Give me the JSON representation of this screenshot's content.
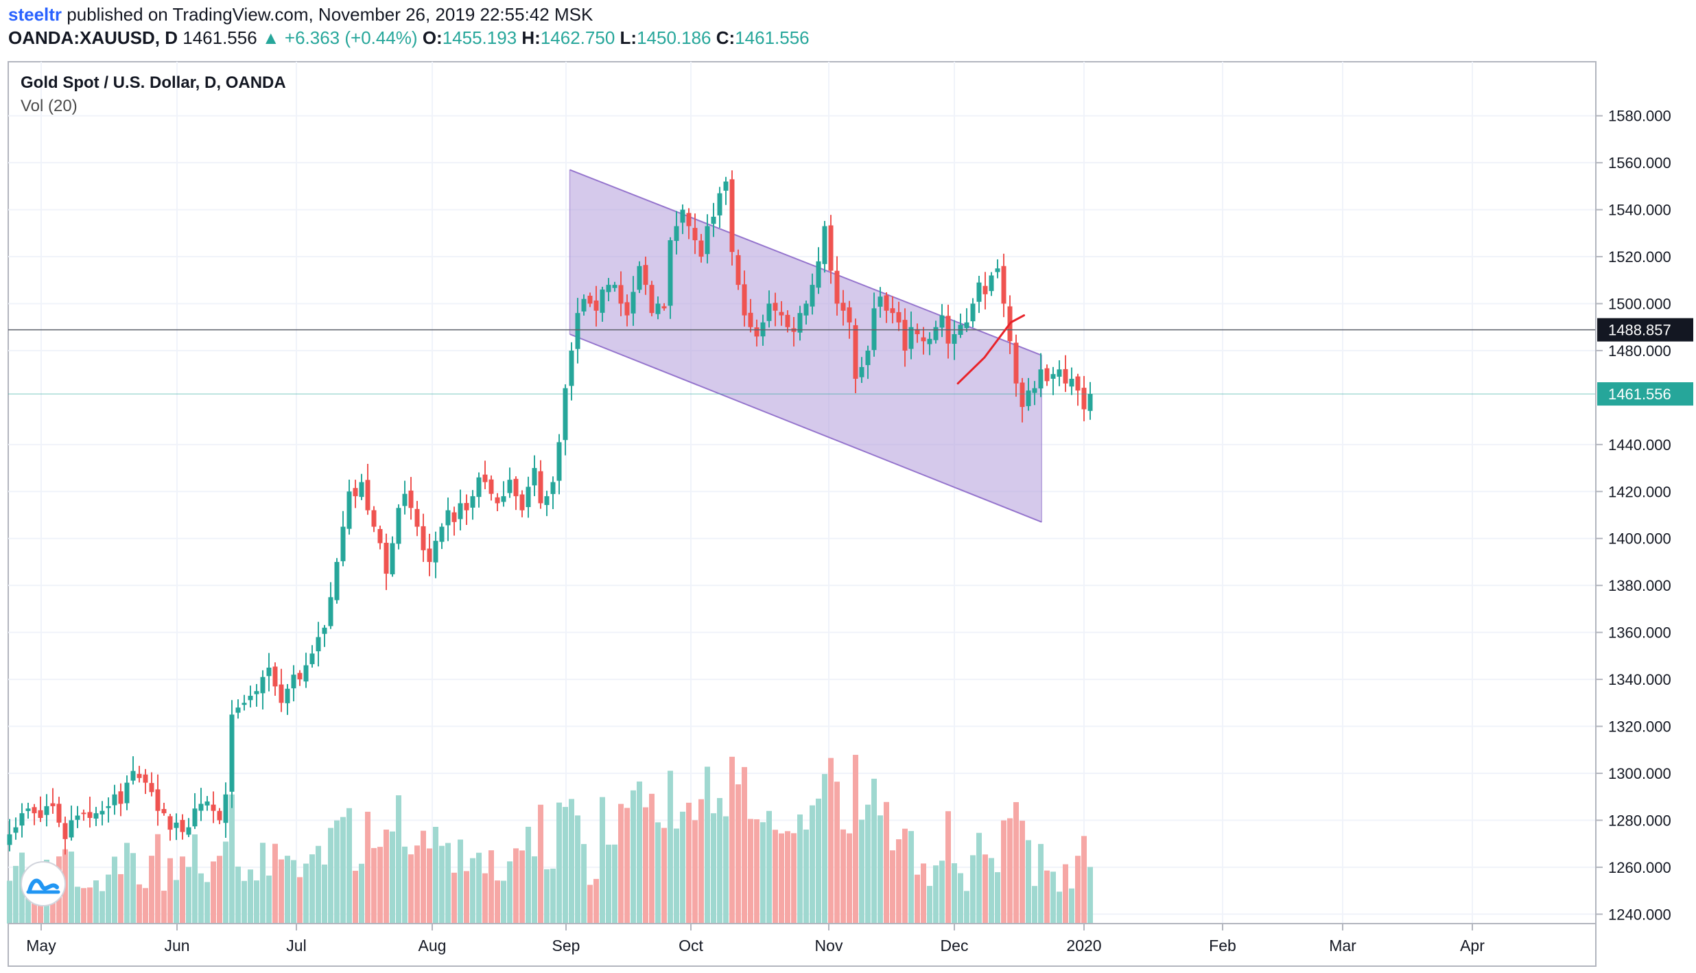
{
  "header": {
    "user": "steeltr",
    "published_text": "published on TradingView.com, November 26, 2019 22:55:42 MSK",
    "symbol": "OANDA:XAUUSD, D",
    "last": "1461.556",
    "change_arrow": "▲",
    "change": "+6.363 (+0.44%)",
    "o_label": "O:",
    "o_value": "1455.193",
    "h_label": "H:",
    "h_value": "1462.750",
    "l_label": "L:",
    "l_value": "1450.186",
    "c_label": "C:",
    "c_value": "1461.556"
  },
  "legend": {
    "title": "Gold Spot / U.S. Dollar, D, OANDA",
    "volume": "Vol (20)"
  },
  "colors": {
    "up": "#26a69a",
    "down": "#ef5350",
    "vol_up": "#9fd8d0",
    "vol_down": "#f6a7a5",
    "channel_fill": "#b39ddb",
    "channel_line": "#9575cd",
    "projection": "#e8232a",
    "crosshair_label_bg": "#131722",
    "last_price_bg": "#26a69a"
  },
  "icons": {
    "logo": "tradingview-logo-icon"
  },
  "chart_data": {
    "type": "candlestick",
    "title": "Gold Spot / U.S. Dollar, D, OANDA",
    "x_tick_labels": [
      "May",
      "Jun",
      "Jul",
      "Aug",
      "Sep",
      "Oct",
      "Nov",
      "Dec",
      "2020",
      "Feb",
      "Mar",
      "Apr"
    ],
    "y_tick_labels": [
      "1580.000",
      "1560.000",
      "1540.000",
      "1520.000",
      "1500.000",
      "1480.000",
      "1440.000",
      "1420.000",
      "1400.000",
      "1380.000",
      "1360.000",
      "1340.000",
      "1320.000",
      "1300.000",
      "1280.000",
      "1260.000",
      "1240.000"
    ],
    "y_ticks": [
      1580,
      1560,
      1540,
      1520,
      1500,
      1480,
      1440,
      1420,
      1400,
      1380,
      1360,
      1340,
      1320,
      1300,
      1280,
      1260,
      1240
    ],
    "ylim": [
      1236,
      1603
    ],
    "grid": true,
    "crosshair_price": 1488.857,
    "crosshair_label": "1488.857",
    "last_price": 1461.556,
    "last_price_label": "1461.556",
    "closes": [
      1274,
      1277,
      1283,
      1285,
      1283,
      1281,
      1286,
      1286,
      1279,
      1272,
      1280,
      1282,
      1283,
      1281,
      1283,
      1284,
      1286,
      1291,
      1287,
      1296,
      1301,
      1298,
      1296,
      1292,
      1284,
      1283,
      1276,
      1279,
      1275,
      1277,
      1285,
      1287,
      1288,
      1284,
      1280,
      1291,
      1325,
      1328,
      1330,
      1333,
      1335,
      1341,
      1345,
      1337,
      1330,
      1336,
      1342,
      1340,
      1346,
      1351,
      1358,
      1362,
      1375,
      1390,
      1405,
      1420,
      1418,
      1424,
      1412,
      1405,
      1398,
      1385,
      1398,
      1413,
      1419,
      1413,
      1405,
      1395,
      1390,
      1399,
      1405,
      1412,
      1407,
      1415,
      1412,
      1418,
      1426,
      1424,
      1419,
      1415,
      1418,
      1425,
      1418,
      1412,
      1422,
      1430,
      1415,
      1418,
      1424,
      1441,
      1464,
      1480,
      1496,
      1502,
      1500,
      1497,
      1506,
      1508,
      1508,
      1500,
      1495,
      1505,
      1516,
      1508,
      1496,
      1500,
      1498,
      1527,
      1533,
      1540,
      1533,
      1527,
      1520,
      1533,
      1537,
      1547,
      1552,
      1522,
      1508,
      1495,
      1490,
      1486,
      1492,
      1500,
      1497,
      1495,
      1490,
      1488,
      1496,
      1500,
      1508,
      1518,
      1533,
      1514,
      1500,
      1497,
      1492,
      1468,
      1473,
      1480,
      1498,
      1503,
      1497,
      1496,
      1492,
      1480,
      1490,
      1487,
      1484,
      1485,
      1490,
      1495,
      1483,
      1487,
      1491,
      1492,
      1500,
      1509,
      1504,
      1512,
      1515,
      1500,
      1484,
      1466,
      1456,
      1463,
      1464,
      1472,
      1467,
      1470,
      1472,
      1466,
      1468,
      1463,
      1455,
      1461.556
    ],
    "projection": [
      {
        "x": "2019-11-27",
        "y": 1466
      },
      {
        "x": "2019-12-03",
        "y": 1477
      },
      {
        "x": "2019-12-09",
        "y": 1492
      },
      {
        "x": "2019-12-12",
        "y": 1495
      }
    ],
    "channel": {
      "top_start": {
        "x": "2019-08-31",
        "y": 1557
      },
      "top_end": {
        "x": "2019-12-16",
        "y": 1478
      },
      "bottom_start": {
        "x": "2019-08-31",
        "y": 1487
      },
      "bottom_end": {
        "x": "2019-12-16",
        "y": 1407
      }
    }
  }
}
